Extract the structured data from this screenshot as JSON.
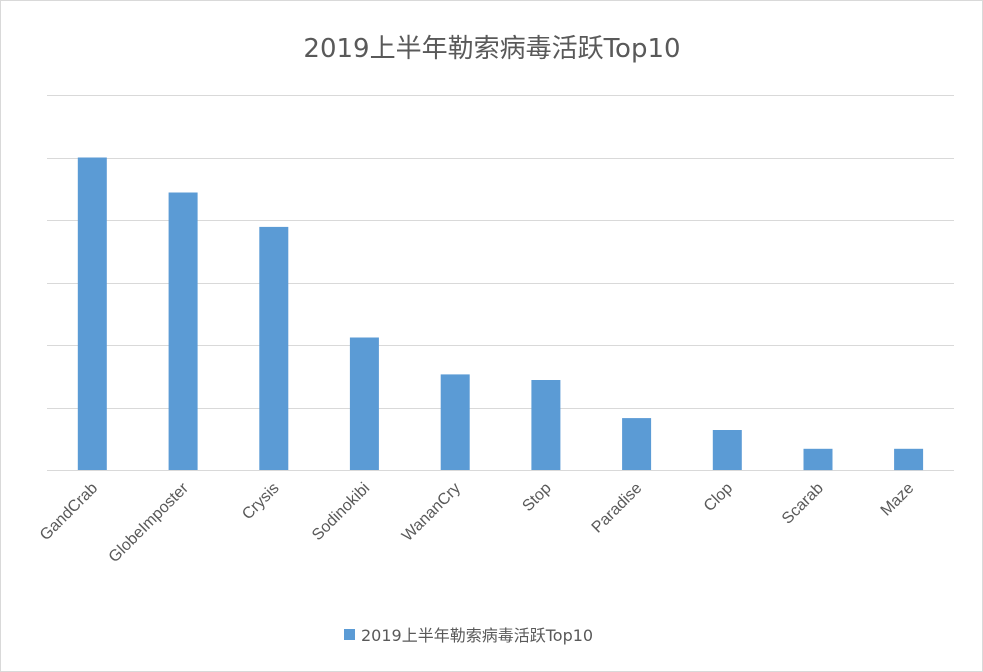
{
  "chart_data": {
    "type": "bar",
    "title": "2019上半年勒索病毒活跃Top10",
    "xlabel": "",
    "ylabel": "",
    "categories": [
      "GandCrab",
      "GlobeImposter",
      "Crysis",
      "Sodinokibi",
      "WananCry",
      "Stop",
      "Paradise",
      "Clop",
      "Scarab",
      "Maze"
    ],
    "series": [
      {
        "name": "2019上半年勒索病毒活跃Top10",
        "values": [
          5.0,
          4.44,
          3.89,
          2.12,
          1.53,
          1.44,
          0.83,
          0.64,
          0.34,
          0.34
        ]
      }
    ],
    "ylim": [
      0,
      6
    ],
    "y_gridlines": [
      0,
      1,
      2,
      3,
      4,
      5,
      6
    ],
    "y_tick_labels_shown": false,
    "grid": true,
    "legend": "bottom",
    "colors": {
      "bar": "#5b9bd5",
      "grid": "#d9d9d9",
      "text": "#595959",
      "border": "#d9d9d9"
    }
  }
}
